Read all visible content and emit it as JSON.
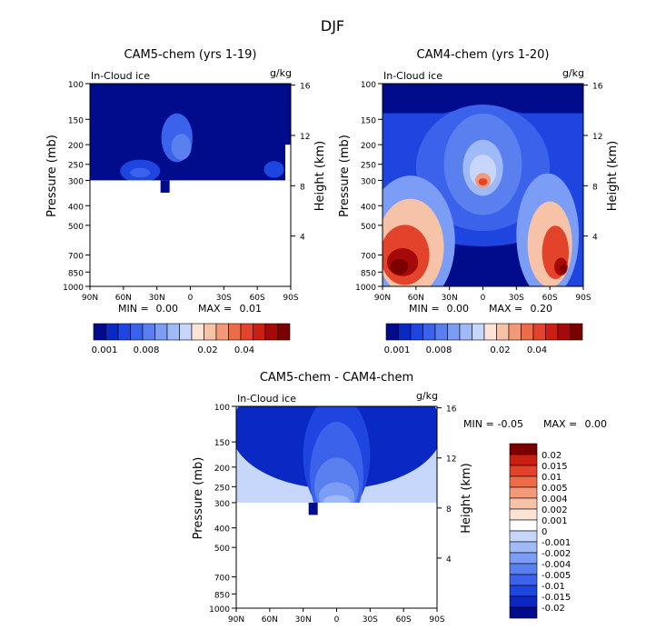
{
  "figure_title": "DJF",
  "colors": {
    "neg": [
      "#000C8B",
      "#0A28C4",
      "#1F45E0",
      "#3A62EA",
      "#5A80F0",
      "#7B9DF5",
      "#A0BAF8",
      "#C6D7FB"
    ],
    "zero": "#E8EEFD",
    "pos": [
      "#FBE3D5",
      "#F6C3A8",
      "#F29A78",
      "#EC6C48",
      "#E2432A",
      "#CC1F12",
      "#A60A08",
      "#7A0000"
    ],
    "white": "#FFFFFF"
  },
  "chart_data": [
    {
      "type": "heatmap",
      "title": "CAM5-chem (yrs 1-19)",
      "field_label": "In-Cloud ice",
      "units": "g/kg",
      "ylabel": "Pressure (mb)",
      "ylabel_right": "Height (km)",
      "x": [
        "90N",
        "60N",
        "30N",
        "0",
        "30S",
        "60S",
        "90S"
      ],
      "x_values": [
        90,
        60,
        30,
        0,
        -30,
        -60,
        -90
      ],
      "xlim": [
        90,
        -90
      ],
      "p_ticks": [
        100,
        150,
        200,
        250,
        300,
        400,
        500,
        700,
        850,
        1000
      ],
      "ylim": [
        1000,
        100
      ],
      "h_ticks": [
        16,
        12,
        8,
        4
      ],
      "min_label": "MIN =",
      "min_value": "0.00",
      "max_label": "MAX =",
      "max_value": "0.01",
      "colorbar_labels": [
        "0.001",
        "0.008",
        "0.02",
        "0.04"
      ],
      "contours": [
        {
          "level": 3,
          "lat": 12,
          "p": 185,
          "rlat": 14,
          "rp": 50
        },
        {
          "level": 4,
          "lat": 8,
          "p": 205,
          "rlat": 9,
          "rp": 30
        },
        {
          "level": 2,
          "lat": 45,
          "p": 270,
          "rlat": 18,
          "rp": 35
        },
        {
          "level": 3,
          "lat": 45,
          "p": 275,
          "rlat": 9,
          "rp": 15
        },
        {
          "level": 2,
          "lat": -75,
          "p": 265,
          "rlat": 9,
          "rp": 25
        }
      ]
    },
    {
      "type": "heatmap",
      "title": "CAM4-chem (yrs 1-20)",
      "field_label": "In-Cloud ice",
      "units": "g/kg",
      "ylabel": "Pressure (mb)",
      "ylabel_right": "Height (km)",
      "x": [
        "90N",
        "60N",
        "30N",
        "0",
        "30S",
        "60S",
        "90S"
      ],
      "x_values": [
        90,
        60,
        30,
        0,
        -30,
        -60,
        -90
      ],
      "xlim": [
        90,
        -90
      ],
      "p_ticks": [
        100,
        150,
        200,
        250,
        300,
        400,
        500,
        700,
        850,
        1000
      ],
      "ylim": [
        1000,
        100
      ],
      "h_ticks": [
        16,
        12,
        8,
        4
      ],
      "min_label": "MIN =",
      "min_value": "0.00",
      "max_label": "MAX =",
      "max_value": "0.20",
      "colorbar_labels": [
        "0.001",
        "0.008",
        "0.02",
        "0.04"
      ],
      "contours": [
        {
          "level": 2,
          "lat": 0,
          "p": 290,
          "rlat": 95,
          "rp": 190
        },
        {
          "level": 3,
          "lat": 0,
          "p": 260,
          "rlat": 60,
          "rp": 160
        },
        {
          "level": 4,
          "lat": 0,
          "p": 250,
          "rlat": 35,
          "rp": 130
        },
        {
          "level": 6,
          "lat": 0,
          "p": 260,
          "rlat": 18,
          "rp": 80
        },
        {
          "level": 7,
          "lat": 0,
          "p": 270,
          "rlat": 12,
          "rp": 50
        },
        {
          "level": 10,
          "lat": 0,
          "p": 300,
          "rlat": 7,
          "rp": 25
        },
        {
          "level": 12,
          "lat": 0,
          "p": 305,
          "rlat": 4,
          "rp": 12
        },
        {
          "level": 5,
          "lat": 65,
          "p": 600,
          "rlat": 40,
          "rp": 380
        },
        {
          "level": 9,
          "lat": 65,
          "p": 640,
          "rlat": 30,
          "rp": 320
        },
        {
          "level": 12,
          "lat": 70,
          "p": 700,
          "rlat": 22,
          "rp": 230
        },
        {
          "level": 14,
          "lat": 72,
          "p": 760,
          "rlat": 14,
          "rp": 120
        },
        {
          "level": 15,
          "lat": 75,
          "p": 800,
          "rlat": 8,
          "rp": 70
        },
        {
          "level": 5,
          "lat": -58,
          "p": 560,
          "rlat": 28,
          "rp": 340
        },
        {
          "level": 9,
          "lat": -60,
          "p": 620,
          "rlat": 20,
          "rp": 280
        },
        {
          "level": 12,
          "lat": -65,
          "p": 680,
          "rlat": 12,
          "rp": 200
        },
        {
          "level": 14,
          "lat": -70,
          "p": 800,
          "rlat": 6,
          "rp": 80
        },
        {
          "level": 15,
          "lat": -72,
          "p": 820,
          "rlat": 3,
          "rp": 40
        }
      ],
      "low_region": {
        "level": 0,
        "lat_from": 45,
        "lat_to": -55,
        "p_top": 440
      }
    },
    {
      "type": "heatmap",
      "title": "CAM5-chem - CAM4-chem",
      "field_label": "In-Cloud ice",
      "units": "g/kg",
      "ylabel": "Pressure (mb)",
      "ylabel_right": "Height (km)",
      "x": [
        "90N",
        "60N",
        "30N",
        "0",
        "30S",
        "60S",
        "90S"
      ],
      "x_values": [
        90,
        60,
        30,
        0,
        -30,
        -60,
        -90
      ],
      "xlim": [
        90,
        -90
      ],
      "p_ticks": [
        100,
        150,
        200,
        250,
        300,
        400,
        500,
        700,
        850,
        1000
      ],
      "ylim": [
        1000,
        100
      ],
      "h_ticks": [
        16,
        12,
        8,
        4
      ],
      "min_label": "MIN =",
      "min_value": "-0.05",
      "max_label": "MAX =",
      "max_value": "0.00",
      "colorbar_labels": [
        "0.02",
        "0.015",
        "0.01",
        "0.005",
        "0.004",
        "0.002",
        "0.001",
        "0",
        "-0.001",
        "-0.002",
        "-0.004",
        "-0.005",
        "-0.01",
        "-0.015",
        "-0.02"
      ],
      "contours": [
        {
          "level": 6,
          "lat": 0,
          "p": 130,
          "rlat": 95,
          "rp": 260
        },
        {
          "level": 5,
          "lat": 0,
          "p": 175,
          "rlat": 30,
          "rp": 220
        },
        {
          "level": 4,
          "lat": 0,
          "p": 220,
          "rlat": 24,
          "rp": 120
        },
        {
          "level": 3,
          "lat": 0,
          "p": 250,
          "rlat": 20,
          "rp": 80
        },
        {
          "level": 2,
          "lat": 0,
          "p": 280,
          "rlat": 16,
          "rp": 45
        },
        {
          "level": 1,
          "lat": 0,
          "p": 295,
          "rlat": 12,
          "rp": 20
        }
      ]
    }
  ]
}
